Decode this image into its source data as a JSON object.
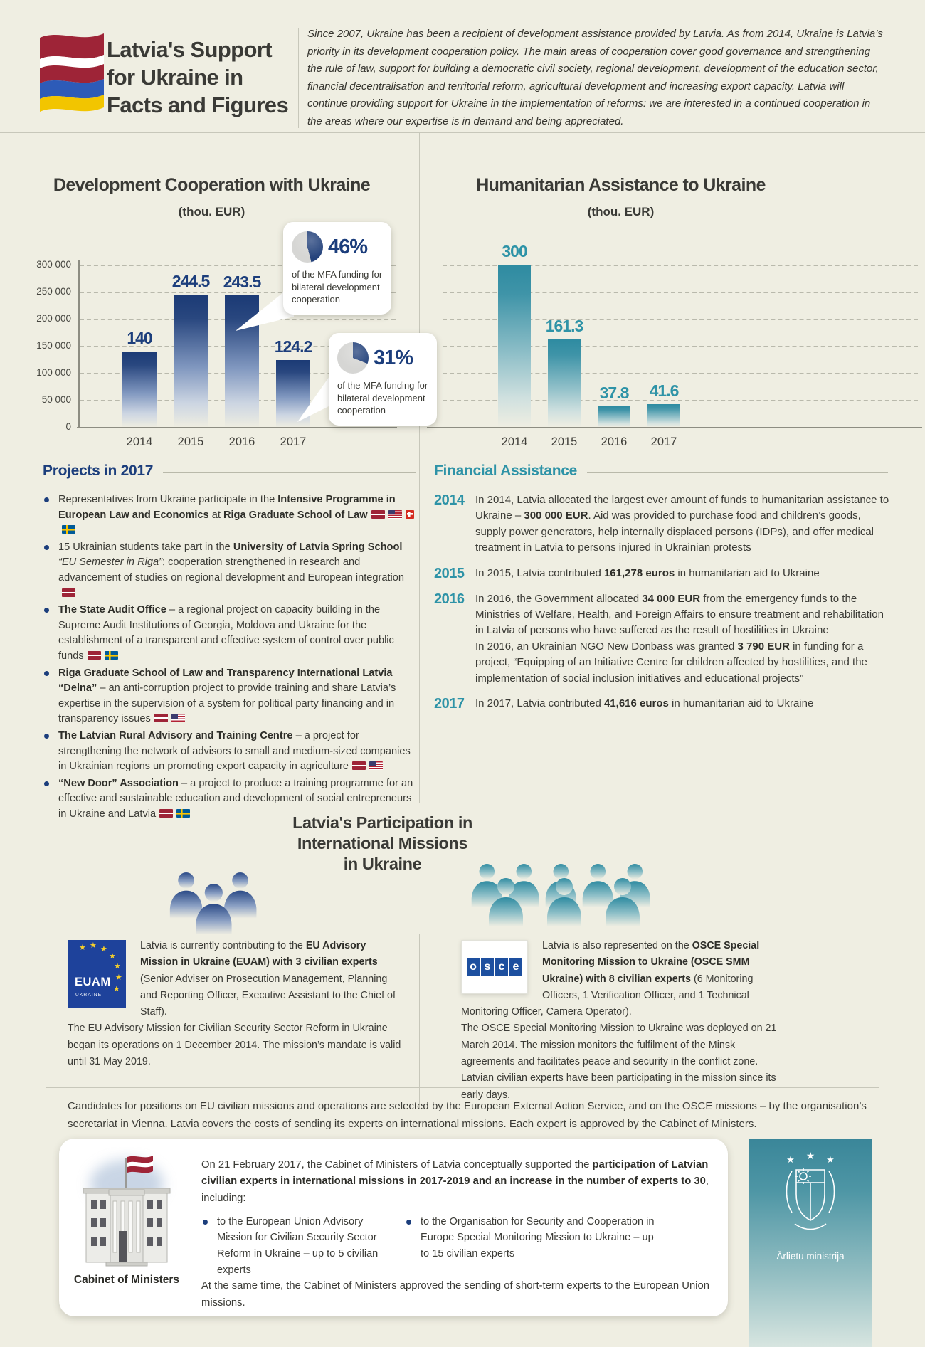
{
  "header": {
    "title_lines": [
      "Latvia's Support",
      "for Ukraine in",
      "Facts and Figures"
    ],
    "intro": "Since 2007, Ukraine has been a recipient of development assistance provided by Latvia. As from 2014, Ukraine is Latvia’s priority in its development cooperation policy. The main areas of cooperation cover good governance and strengthening the rule of law, support for building a democratic civil society, regional development, development of the education sector, financial decentralisation and territorial reform, agricultural development and increasing export capacity. Latvia will continue providing support for Ukraine in the implementation of reforms: we are interested in a continued cooperation in the areas where our expertise is in demand and being appreciated."
  },
  "chart_data": [
    {
      "type": "bar",
      "title": "Development Cooperation with Ukraine",
      "subtitle": "(thou. EUR)",
      "categories": [
        "2014",
        "2015",
        "2016",
        "2017"
      ],
      "values": [
        140,
        244.5,
        243.5,
        124.2
      ],
      "unit": "thou. EUR",
      "ylim": [
        0,
        300
      ],
      "yticks": [
        "300 000",
        "250 000",
        "200 000",
        "150 000",
        "100 000",
        "50 000",
        "0"
      ],
      "grid": true,
      "bar_color": "#1b3a75",
      "callouts": [
        {
          "pct": "46%",
          "value": 46,
          "text": "of the MFA funding for bilateral development cooperation",
          "target_year": "2016"
        },
        {
          "pct": "31%",
          "value": 31,
          "text": "of the MFA funding for bilateral development cooperation",
          "target_year": "2017"
        }
      ]
    },
    {
      "type": "bar",
      "title": "Humanitarian Assistance to Ukraine",
      "subtitle": "(thou. EUR)",
      "categories": [
        "2014",
        "2015",
        "2016",
        "2017"
      ],
      "values": [
        300,
        161.3,
        37.8,
        41.6
      ],
      "unit": "thou. EUR",
      "ylim": [
        0,
        300
      ],
      "yticks": [],
      "grid": true,
      "bar_color": "#2e8ba1"
    }
  ],
  "projects": {
    "heading": "Projects in 2017",
    "heading_color": "#1c3e7c",
    "items": [
      {
        "segments": [
          {
            "t": "Representatives from Ukraine participate in the "
          },
          {
            "b": "Intensive Programme in European Law and Economics"
          },
          {
            "t": " at "
          },
          {
            "b": "Riga Graduate School of Law"
          }
        ],
        "flags": [
          "latvia",
          "usa",
          "switzerland",
          "sweden"
        ]
      },
      {
        "segments": [
          {
            "t": "15 Ukrainian students take part in the "
          },
          {
            "b": "University of Latvia Spring School"
          },
          {
            "t": " "
          },
          {
            "i": "“EU Semester in Riga”"
          },
          {
            "t": "; cooperation strengthened in research and advancement of studies on regional development and European integration"
          }
        ],
        "flags": [
          "latvia"
        ]
      },
      {
        "segments": [
          {
            "b": "The State Audit Office"
          },
          {
            "t": " – a regional project on capacity building in the Supreme Audit Institutions of Georgia, Moldova and Ukraine for the establishment of a transparent and effective system of control over public funds"
          }
        ],
        "flags": [
          "latvia",
          "sweden"
        ]
      },
      {
        "segments": [
          {
            "b": "Riga Graduate School of Law and Transparency International Latvia “Delna”"
          },
          {
            "t": " – an anti-corruption project to provide training and share Latvia’s expertise in the supervision of a system for political party financing and in transparency issues"
          }
        ],
        "flags": [
          "latvia",
          "usa"
        ]
      },
      {
        "segments": [
          {
            "b": "The Latvian Rural Advisory and Training Centre"
          },
          {
            "t": " – a project for strengthening the network of advisors to small and medium-sized companies in Ukrainian regions un promoting export capacity in agriculture"
          }
        ],
        "flags": [
          "latvia",
          "usa"
        ]
      },
      {
        "segments": [
          {
            "b": "“New Door” Association"
          },
          {
            "t": " – a project to produce a training programme for an effective and sustainable education and development of social entrepreneurs in Ukraine and Latvia"
          }
        ],
        "flags": [
          "latvia",
          "sweden"
        ]
      }
    ]
  },
  "financial": {
    "heading": "Financial Assistance",
    "heading_color": "#2e93a7",
    "items": [
      {
        "year": "2014",
        "paras": [
          [
            {
              "t": "In 2014, Latvia allocated the largest ever amount of funds to humanitarian assistance to Ukraine – "
            },
            {
              "b": "300 000 EUR"
            },
            {
              "t": ". Aid was provided to purchase food and children’s goods, supply power generators, help internally displaced persons (IDPs), and offer medical treatment in Latvia to persons injured in Ukrainian protests"
            }
          ]
        ]
      },
      {
        "year": "2015",
        "paras": [
          [
            {
              "t": "In 2015, Latvia contributed "
            },
            {
              "b": "161,278 euros"
            },
            {
              "t": " in humanitarian aid to Ukraine"
            }
          ]
        ]
      },
      {
        "year": "2016",
        "paras": [
          [
            {
              "t": "In 2016, the Government allocated "
            },
            {
              "b": "34 000 EUR"
            },
            {
              "t": " from the emergency funds to the Ministries of Welfare, Health, and Foreign Affairs to ensure treatment and rehabilitation in Latvia of persons who have suffered as the result of hostilities in Ukraine"
            }
          ],
          [
            {
              "t": "In 2016, an Ukrainian NGO New Donbass was granted "
            },
            {
              "b": "3 790 EUR"
            },
            {
              "t": " in funding for a project, “Equipping of an Initiative Centre for children affected by hostilities, and the implementation of social inclusion initiatives and educational projects”"
            }
          ]
        ]
      },
      {
        "year": "2017",
        "paras": [
          [
            {
              "t": "In 2017, Latvia contributed "
            },
            {
              "b": "41,616 euros"
            },
            {
              "t": " in humanitarian aid to Ukraine"
            }
          ]
        ]
      }
    ]
  },
  "missions": {
    "title_lines": [
      "Latvia's Participation in",
      "International Missions",
      "in Ukraine"
    ],
    "euam": {
      "logo_label": "EUAM",
      "logo_sub": "UKRAINE",
      "paragraphs": [
        [
          {
            "t": "Latvia is currently contributing to the "
          },
          {
            "b": "EU Advisory Mission in Ukraine (EUAM) with 3 civilian experts"
          },
          {
            "t": "  (Senior Adviser on Prosecution Management, Planning and Reporting Officer, Executive Assistant to the Chief of Staff)."
          }
        ],
        [
          {
            "t": "The EU Advisory Mission for Civilian Security Sector Reform in Ukraine began its operations on 1 December 2014. The mission’s mandate is valid until 31 May 2019."
          }
        ]
      ]
    },
    "osce": {
      "logo_letters": "osce",
      "paragraphs": [
        [
          {
            "t": "Latvia is also represented on the "
          },
          {
            "b": "OSCE Special Monitoring Mission to Ukraine (OSCE SMM Ukraine) with 8 civilian experts"
          },
          {
            "t": " (6 Monitoring Officers, 1 Verification Officer, and 1 Technical Monitoring Officer, Camera Operator)."
          }
        ],
        [
          {
            "t": "The OSCE Special Monitoring Mission to Ukraine was deployed on 21 March 2014. The mission monitors the fulfilment of the Minsk agreements and facilitates peace and security in the conflict zone. Latvian civilian experts have been participating in the mission since its early days."
          }
        ]
      ]
    }
  },
  "footer": {
    "candidates": "Candidates for positions on EU civilian missions and operations are selected by the European External Action Service, and on the OSCE missions – by the organisation’s secretariat in Vienna. Latvia covers the costs of sending its experts on international missions. Each expert is approved by the Cabinet of Ministers.",
    "cabinet": {
      "caption": "Cabinet of Ministers",
      "intro_segments": [
        {
          "t": "On 21 February 2017, the Cabinet of Ministers of Latvia conceptually supported the "
        },
        {
          "b": "participation of Latvian civilian experts in international missions in 2017-2019 and an increase in the number of experts to 30"
        },
        {
          "t": ", including:"
        }
      ],
      "bullets": [
        "to the European Union Advisory Mission for Civilian Security Sector Reform in Ukraine – up to 5 civilian experts",
        "to the Organisation for Security and Cooperation in Europe Special Monitoring Mission to Ukraine – up to 15 civilian experts"
      ],
      "outro": "At the same time, the Cabinet of Ministers approved the sending of short-term experts to the European Union missions."
    },
    "ministry": {
      "label": "Ārlietu ministrija"
    }
  },
  "colors": {
    "background": "#efeee2",
    "navy": "#1c3e7c",
    "teal": "#2e93a7",
    "latvia_maroon": "#9e2437",
    "ukraine_blue": "#2d5bb8",
    "ukraine_yellow": "#f2c500"
  }
}
